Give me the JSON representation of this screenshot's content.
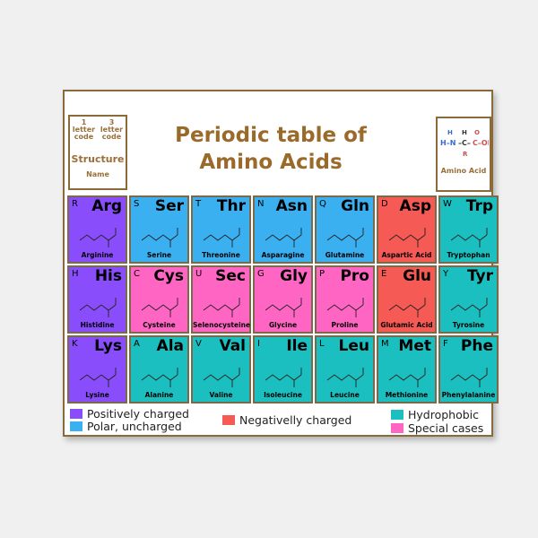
{
  "title": [
    "Periodic table of",
    "Amino Acids"
  ],
  "key": {
    "one": "1 letter code",
    "three": "3 letter code",
    "structure": "Structure",
    "name": "Name"
  },
  "amino_acid_box": {
    "label": "Amino Acid"
  },
  "colors": {
    "positive": "#8a4dfc",
    "polar": "#3ab0f0",
    "negative": "#f55a55",
    "hydrophobic": "#1bbfbf",
    "special": "#ff66c4",
    "border": "#8b6a3a",
    "title": "#9a6a2a"
  },
  "cells": [
    {
      "one": "R",
      "three": "Arg",
      "name": "Arginine",
      "cat": "positive"
    },
    {
      "one": "S",
      "three": "Ser",
      "name": "Serine",
      "cat": "polar"
    },
    {
      "one": "T",
      "three": "Thr",
      "name": "Threonine",
      "cat": "polar"
    },
    {
      "one": "N",
      "three": "Asn",
      "name": "Asparagine",
      "cat": "polar"
    },
    {
      "one": "Q",
      "three": "Gln",
      "name": "Glutamine",
      "cat": "polar"
    },
    {
      "one": "D",
      "three": "Asp",
      "name": "Aspartic Acid",
      "cat": "negative"
    },
    {
      "one": "W",
      "three": "Trp",
      "name": "Tryptophan",
      "cat": "hydrophobic"
    },
    {
      "one": "H",
      "three": "His",
      "name": "Histidine",
      "cat": "positive"
    },
    {
      "one": "C",
      "three": "Cys",
      "name": "Cysteine",
      "cat": "special"
    },
    {
      "one": "U",
      "three": "Sec",
      "name": "Selenocysteine",
      "cat": "special"
    },
    {
      "one": "G",
      "three": "Gly",
      "name": "Glycine",
      "cat": "special"
    },
    {
      "one": "P",
      "three": "Pro",
      "name": "Proline",
      "cat": "special"
    },
    {
      "one": "E",
      "three": "Glu",
      "name": "Glutamic Acid",
      "cat": "negative"
    },
    {
      "one": "Y",
      "three": "Tyr",
      "name": "Tyrosine",
      "cat": "hydrophobic"
    },
    {
      "one": "K",
      "three": "Lys",
      "name": "Lysine",
      "cat": "positive"
    },
    {
      "one": "A",
      "three": "Ala",
      "name": "Alanine",
      "cat": "hydrophobic"
    },
    {
      "one": "V",
      "three": "Val",
      "name": "Valine",
      "cat": "hydrophobic"
    },
    {
      "one": "I",
      "three": "Ile",
      "name": "Isoleucine",
      "cat": "hydrophobic"
    },
    {
      "one": "L",
      "three": "Leu",
      "name": "Leucine",
      "cat": "hydrophobic"
    },
    {
      "one": "M",
      "three": "Met",
      "name": "Methionine",
      "cat": "hydrophobic"
    },
    {
      "one": "F",
      "three": "Phe",
      "name": "Phenylalanine",
      "cat": "hydrophobic"
    }
  ],
  "legend": {
    "positive": "Positively charged",
    "polar": "Polar, uncharged",
    "negative": "Negativelly charged",
    "hydrophobic": "Hydrophobic",
    "special": "Special cases"
  }
}
